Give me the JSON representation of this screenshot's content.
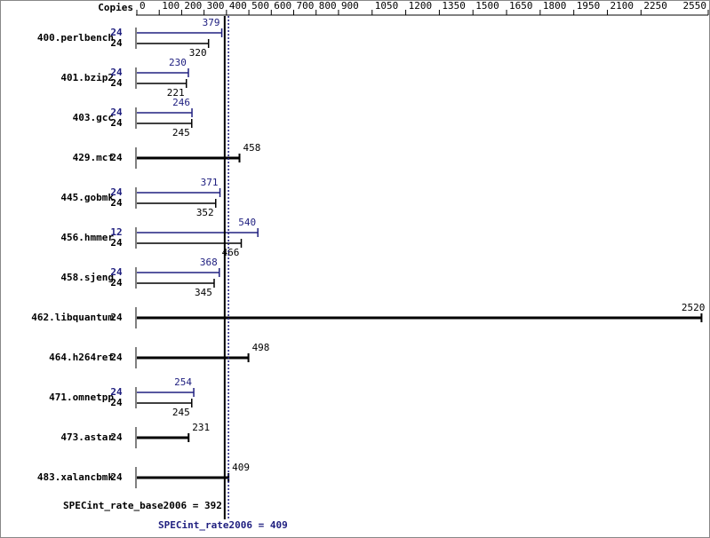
{
  "chart_data": {
    "type": "bar",
    "orientation": "horizontal",
    "copies_label": "Copies",
    "categories": [
      "400.perlbench",
      "401.bzip2",
      "403.gcc",
      "429.mcf",
      "445.gobmk",
      "456.hmmer",
      "458.sjeng",
      "462.libquantum",
      "464.h264ref",
      "471.omnetpp",
      "473.astar",
      "483.xalancbmk"
    ],
    "base": {
      "color": "#000000",
      "copies": [
        24,
        24,
        24,
        24,
        24,
        24,
        24,
        24,
        24,
        24,
        24,
        24
      ],
      "values": [
        320,
        221,
        245,
        458,
        352,
        466,
        345,
        2520,
        498,
        245,
        231,
        409
      ]
    },
    "peak": {
      "color": "#202080",
      "copies": [
        24,
        24,
        24,
        null,
        24,
        12,
        24,
        null,
        null,
        24,
        null,
        null
      ],
      "values": [
        379,
        230,
        246,
        null,
        371,
        540,
        368,
        null,
        null,
        254,
        null,
        null
      ]
    },
    "xlim": [
      0,
      2550
    ],
    "xticks": [
      0,
      100,
      200,
      300,
      400,
      500,
      600,
      700,
      800,
      900,
      1050,
      1200,
      1350,
      1500,
      1650,
      1800,
      1950,
      2100,
      2250,
      2550
    ],
    "scores": [
      {
        "value": 392,
        "label": "SPECint_rate_base2006 = 392",
        "color": "#000000"
      },
      {
        "value": 409,
        "label": "SPECint_rate2006 = 409",
        "color": "#202080"
      }
    ]
  }
}
